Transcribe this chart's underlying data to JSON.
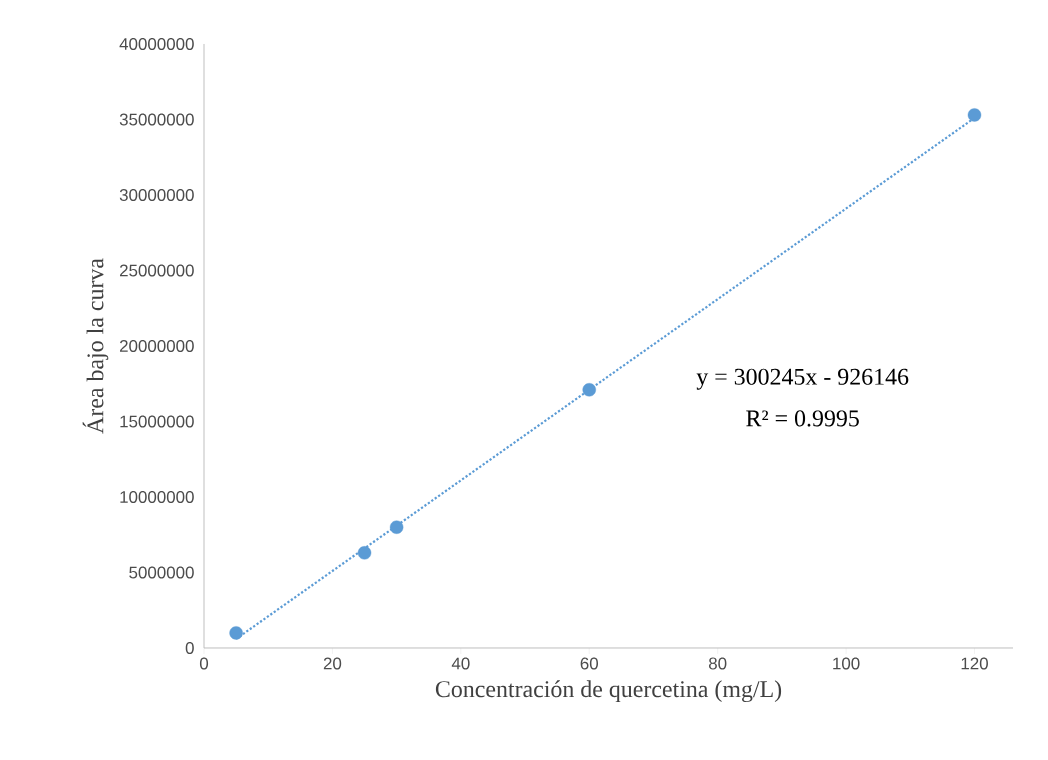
{
  "chart_data": {
    "type": "scatter",
    "xlabel": "Concentración de quercetina (mg/L)",
    "ylabel": "Área bajo la curva",
    "xlim": [
      0,
      126
    ],
    "xticks": [
      0,
      20,
      40,
      60,
      80,
      100,
      120
    ],
    "ylim": [
      0,
      40000000
    ],
    "yticks": [
      0,
      5000000,
      10000000,
      15000000,
      20000000,
      25000000,
      30000000,
      35000000,
      40000000
    ],
    "series": [
      {
        "color": "#5b9bd5",
        "marker": "circle",
        "x": [
          5,
          25,
          30,
          60,
          120
        ],
        "values": [
          1000000,
          6300000,
          8000000,
          17100000,
          35300000
        ]
      },
      {
        "type": "line",
        "color": "#5b9bd5",
        "marker": "none",
        "line_style": "dotted",
        "x": [
          5,
          120
        ],
        "values": [
          600000,
          35100000
        ]
      }
    ],
    "annotations": [
      "y = 300245x - 926146",
      "R² = 0.9995"
    ]
  }
}
